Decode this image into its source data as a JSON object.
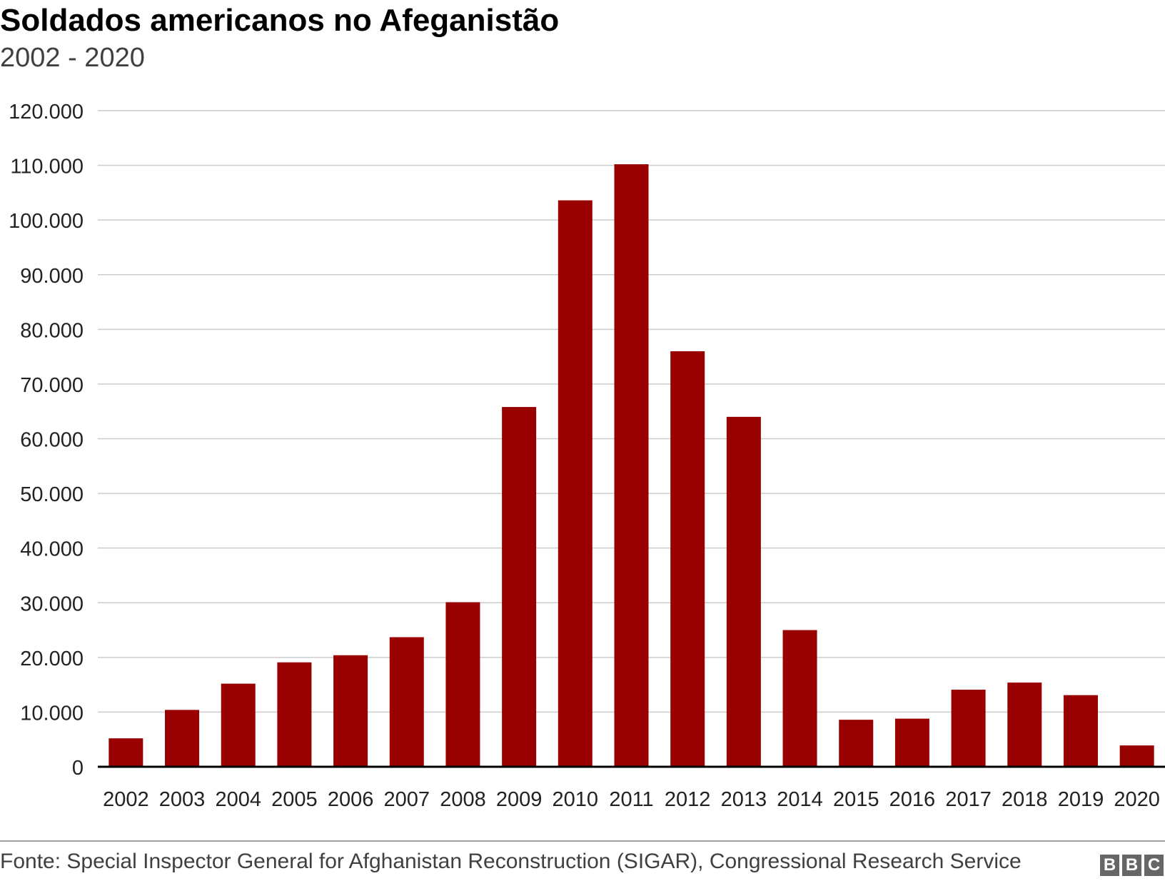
{
  "chart_data": {
    "type": "bar",
    "title": "Soldados americanos no Afeganistão",
    "subtitle": "2002 - 2020",
    "xlabel": "",
    "ylabel": "",
    "categories": [
      "2002",
      "2003",
      "2004",
      "2005",
      "2006",
      "2007",
      "2008",
      "2009",
      "2010",
      "2011",
      "2012",
      "2013",
      "2014",
      "2015",
      "2016",
      "2017",
      "2018",
      "2019",
      "2020"
    ],
    "values": [
      5200,
      10400,
      15200,
      19100,
      20400,
      23700,
      30100,
      65800,
      103600,
      110200,
      76000,
      64000,
      25000,
      8600,
      8800,
      14100,
      15400,
      13100,
      3900
    ],
    "ylim": [
      0,
      120000
    ],
    "yticks": [
      0,
      10000,
      20000,
      30000,
      40000,
      50000,
      60000,
      70000,
      80000,
      90000,
      100000,
      110000,
      120000
    ],
    "ytick_labels": [
      "0",
      "10.000",
      "20.000",
      "30.000",
      "40.000",
      "50.000",
      "60.000",
      "70.000",
      "80.000",
      "90.000",
      "100.000",
      "110.000",
      "120.000"
    ],
    "grid": true,
    "legend": "none",
    "colors": {
      "bar": "#990000",
      "grid": "#cccccc",
      "axis": "#000000"
    }
  },
  "source": "Fonte: Special Inspector General for Afghanistan Reconstruction (SIGAR), Congressional Research Service",
  "logo": {
    "letters": [
      "B",
      "B",
      "C"
    ]
  }
}
